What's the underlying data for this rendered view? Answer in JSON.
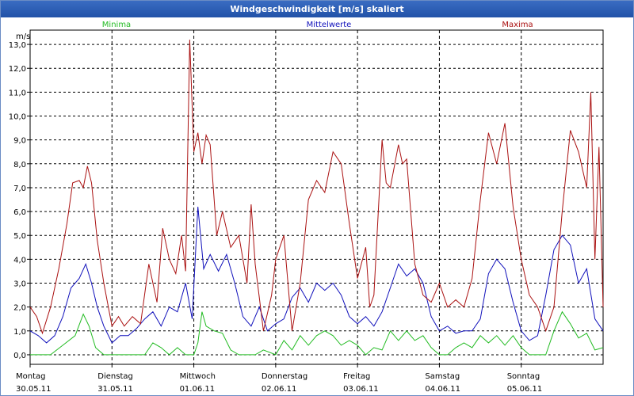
{
  "window": {
    "title": "Windgeschwindigkeit [m/s] skaliert"
  },
  "colors": {
    "min": "#22bb22",
    "mean": "#1111bb",
    "max": "#aa1111",
    "grid": "#000000"
  },
  "chart_data": {
    "type": "line",
    "title": "Windgeschwindigkeit [m/s] skaliert",
    "ylabel": "m/s",
    "xlabel": "",
    "ylim": [
      -0.4,
      13.6
    ],
    "xlim": [
      0,
      7
    ],
    "y_ticks": [
      "0,0",
      "1,0",
      "2,0",
      "3,0",
      "4,0",
      "5,0",
      "6,0",
      "7,0",
      "8,0",
      "9,0",
      "10,0",
      "11,0",
      "12,0",
      "13,0"
    ],
    "x_ticks": [
      {
        "day": "Montag",
        "date": "30.05.11"
      },
      {
        "day": "Dienstag",
        "date": "31.05.11"
      },
      {
        "day": "Mittwoch",
        "date": "01.06.11"
      },
      {
        "day": "Donnerstag",
        "date": "02.06.11"
      },
      {
        "day": "Freitag",
        "date": "03.06.11"
      },
      {
        "day": "Samstag",
        "date": "04.06.11"
      },
      {
        "day": "Sonntag",
        "date": "05.06.11"
      }
    ],
    "grid": true,
    "series": [
      {
        "name": "Minima",
        "key": "min",
        "x": [
          0,
          0.12,
          0.25,
          0.4,
          0.55,
          0.65,
          0.72,
          0.8,
          0.9,
          1.0,
          1.1,
          1.25,
          1.4,
          1.5,
          1.6,
          1.7,
          1.8,
          1.9,
          2.0,
          2.05,
          2.1,
          2.15,
          2.25,
          2.35,
          2.45,
          2.55,
          2.65,
          2.75,
          2.85,
          3.0,
          3.1,
          3.2,
          3.3,
          3.4,
          3.5,
          3.6,
          3.7,
          3.8,
          3.9,
          4.0,
          4.1,
          4.2,
          4.3,
          4.4,
          4.5,
          4.6,
          4.7,
          4.8,
          4.9,
          5.0,
          5.1,
          5.2,
          5.3,
          5.4,
          5.5,
          5.6,
          5.7,
          5.8,
          5.9,
          6.0,
          6.1,
          6.2,
          6.3,
          6.4,
          6.5,
          6.6,
          6.7,
          6.8,
          6.9,
          7.0
        ],
        "values": [
          0,
          0,
          0,
          0.4,
          0.8,
          1.7,
          1.2,
          0.3,
          0,
          0,
          0,
          0,
          0,
          0.5,
          0.3,
          0,
          0.3,
          0,
          0,
          0.5,
          1.8,
          1.2,
          1.0,
          0.9,
          0.2,
          0,
          0,
          0,
          0.2,
          0,
          0.6,
          0.2,
          0.8,
          0.4,
          0.8,
          1.0,
          0.8,
          0.4,
          0.6,
          0.4,
          0,
          0.3,
          0.2,
          1.0,
          0.6,
          1.0,
          0.6,
          0.8,
          0.3,
          0,
          0,
          0.3,
          0.5,
          0.3,
          0.8,
          0.5,
          0.8,
          0.4,
          0.8,
          0.3,
          0,
          0,
          0,
          1.0,
          1.8,
          1.3,
          0.7,
          0.9,
          0.2,
          0.3
        ]
      },
      {
        "name": "Mittelwerte",
        "key": "mean",
        "x": [
          0,
          0.1,
          0.2,
          0.3,
          0.4,
          0.5,
          0.6,
          0.68,
          0.75,
          0.82,
          0.9,
          1.0,
          1.1,
          1.2,
          1.3,
          1.4,
          1.5,
          1.6,
          1.7,
          1.8,
          1.9,
          1.98,
          2.05,
          2.12,
          2.2,
          2.3,
          2.4,
          2.5,
          2.6,
          2.7,
          2.8,
          2.9,
          3.0,
          3.1,
          3.2,
          3.3,
          3.4,
          3.5,
          3.6,
          3.7,
          3.8,
          3.9,
          4.0,
          4.1,
          4.2,
          4.3,
          4.4,
          4.5,
          4.6,
          4.7,
          4.8,
          4.9,
          5.0,
          5.1,
          5.2,
          5.3,
          5.4,
          5.5,
          5.6,
          5.7,
          5.8,
          5.9,
          6.0,
          6.1,
          6.2,
          6.3,
          6.4,
          6.5,
          6.6,
          6.7,
          6.8,
          6.9,
          7.0
        ],
        "values": [
          1.0,
          0.8,
          0.5,
          0.8,
          1.6,
          2.8,
          3.2,
          3.8,
          3.0,
          2.0,
          1.2,
          0.5,
          0.8,
          0.8,
          1.1,
          1.5,
          1.8,
          1.2,
          2.0,
          1.8,
          3.0,
          1.5,
          6.2,
          3.6,
          4.2,
          3.5,
          4.2,
          3.0,
          1.6,
          1.2,
          2.0,
          1.0,
          1.3,
          1.5,
          2.4,
          2.8,
          2.2,
          3.0,
          2.7,
          3.0,
          2.5,
          1.6,
          1.3,
          1.6,
          1.2,
          1.8,
          2.8,
          3.8,
          3.3,
          3.6,
          3.0,
          1.6,
          1.0,
          1.2,
          0.9,
          1.0,
          1.0,
          1.5,
          3.4,
          4.0,
          3.6,
          2.2,
          1.0,
          0.6,
          0.8,
          2.5,
          4.4,
          5.0,
          4.6,
          3.0,
          3.6,
          1.5,
          1.0
        ]
      },
      {
        "name": "Maxima",
        "key": "max",
        "x": [
          0,
          0.08,
          0.15,
          0.25,
          0.35,
          0.45,
          0.52,
          0.6,
          0.65,
          0.7,
          0.75,
          0.82,
          0.9,
          1.0,
          1.08,
          1.15,
          1.25,
          1.35,
          1.45,
          1.55,
          1.62,
          1.7,
          1.78,
          1.85,
          1.9,
          1.95,
          2.0,
          2.05,
          2.1,
          2.15,
          2.2,
          2.28,
          2.35,
          2.45,
          2.55,
          2.65,
          2.7,
          2.75,
          2.85,
          2.95,
          3.0,
          3.1,
          3.2,
          3.3,
          3.4,
          3.5,
          3.6,
          3.7,
          3.8,
          3.9,
          4.0,
          4.1,
          4.15,
          4.2,
          4.3,
          4.35,
          4.4,
          4.5,
          4.55,
          4.6,
          4.7,
          4.8,
          4.9,
          5.0,
          5.1,
          5.2,
          5.3,
          5.4,
          5.5,
          5.6,
          5.7,
          5.8,
          5.9,
          6.0,
          6.1,
          6.2,
          6.3,
          6.4,
          6.5,
          6.6,
          6.7,
          6.8,
          6.85,
          6.9,
          6.95,
          7.0
        ],
        "values": [
          2.0,
          1.6,
          0.9,
          2.0,
          3.6,
          5.5,
          7.2,
          7.3,
          7.0,
          7.9,
          7.2,
          4.8,
          3.0,
          1.2,
          1.6,
          1.2,
          1.6,
          1.3,
          3.8,
          2.2,
          5.3,
          4.0,
          3.4,
          5.0,
          3.5,
          13.2,
          8.5,
          9.3,
          8.0,
          9.2,
          8.8,
          5.0,
          6.0,
          4.5,
          5.0,
          3.0,
          6.3,
          3.8,
          1.0,
          2.5,
          4.0,
          5.0,
          1.0,
          3.0,
          6.5,
          7.3,
          6.8,
          8.5,
          8.0,
          5.5,
          3.2,
          4.5,
          2.0,
          2.5,
          9.0,
          7.2,
          7.0,
          8.8,
          8.0,
          8.2,
          3.8,
          2.5,
          2.2,
          3.0,
          2.0,
          2.3,
          2.0,
          3.2,
          6.5,
          9.3,
          8.0,
          9.7,
          6.2,
          4.0,
          2.5,
          2.0,
          1.0,
          2.0,
          6.0,
          9.4,
          8.5,
          7.0,
          11.0,
          4.0,
          8.7,
          2.0
        ]
      }
    ]
  }
}
